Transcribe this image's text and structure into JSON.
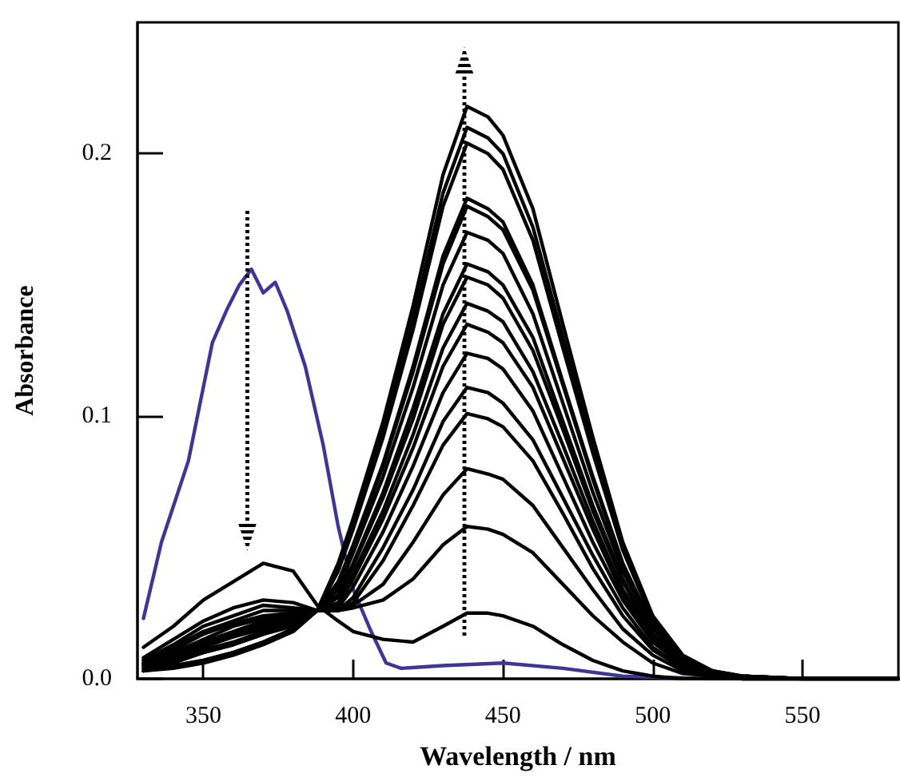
{
  "chart_data": {
    "type": "line",
    "xlabel": "Wavelength / nm",
    "ylabel": "Absorbance",
    "x": [
      330,
      340,
      350,
      360,
      370,
      380,
      388,
      395,
      400,
      410,
      420,
      430,
      438,
      445,
      450,
      460,
      470,
      480,
      490,
      500,
      510,
      520,
      530,
      550,
      582
    ],
    "xlim": [
      328,
      582
    ],
    "xticks": [
      350,
      400,
      450,
      500,
      550
    ],
    "ylim": [
      0,
      0.25
    ],
    "yticks": [
      {
        "value": 0,
        "label": "0.0"
      },
      0.1,
      0.2
    ],
    "grid": false,
    "marker": "none",
    "line_style": "solid",
    "series": [
      {
        "color": "#3f3594",
        "x": [
          330,
          336,
          345,
          353,
          358,
          362,
          366,
          370,
          374,
          378,
          384,
          390,
          395,
          400,
          406,
          411,
          416,
          430,
          450,
          470,
          490,
          520,
          582
        ],
        "values": [
          0.023,
          0.052,
          0.083,
          0.128,
          0.141,
          0.15,
          0.156,
          0.147,
          0.151,
          0.14,
          0.119,
          0.089,
          0.058,
          0.034,
          0.018,
          0.006,
          0.004,
          0.005,
          0.006,
          0.004,
          0.001,
          0,
          0
        ]
      },
      {
        "color": "#000000",
        "values": [
          0.012,
          0.02,
          0.03,
          0.037,
          0.044,
          0.041,
          0.028,
          0.022,
          0.018,
          0.015,
          0.014,
          0.02,
          0.025,
          0.025,
          0.024,
          0.02,
          0.013,
          0.007,
          0.003,
          0.001,
          0,
          0,
          0,
          0,
          0
        ]
      },
      {
        "color": "#000000",
        "values": [
          0.008,
          0.015,
          0.022,
          0.027,
          0.03,
          0.029,
          0.026,
          0.026,
          0.027,
          0.03,
          0.038,
          0.051,
          0.058,
          0.057,
          0.055,
          0.048,
          0.036,
          0.024,
          0.014,
          0.006,
          0.002,
          0.001,
          0,
          0,
          0
        ]
      },
      {
        "color": "#000000",
        "values": [
          0.007,
          0.013,
          0.02,
          0.024,
          0.028,
          0.027,
          0.026,
          0.026,
          0.028,
          0.036,
          0.052,
          0.07,
          0.08,
          0.078,
          0.076,
          0.066,
          0.05,
          0.034,
          0.019,
          0.009,
          0.003,
          0.001,
          0,
          0,
          0
        ]
      },
      {
        "color": "#000000",
        "values": [
          0.007,
          0.012,
          0.018,
          0.022,
          0.026,
          0.026,
          0.026,
          0.026,
          0.029,
          0.045,
          0.066,
          0.089,
          0.101,
          0.099,
          0.096,
          0.083,
          0.063,
          0.042,
          0.024,
          0.011,
          0.004,
          0.001,
          0,
          0,
          0
        ]
      },
      {
        "color": "#000000",
        "values": [
          0.006,
          0.011,
          0.017,
          0.021,
          0.024,
          0.025,
          0.026,
          0.026,
          0.031,
          0.05,
          0.072,
          0.098,
          0.111,
          0.109,
          0.105,
          0.091,
          0.069,
          0.047,
          0.027,
          0.012,
          0.004,
          0.001,
          0,
          0,
          0
        ]
      },
      {
        "color": "#000000",
        "values": [
          0.006,
          0.01,
          0.015,
          0.02,
          0.023,
          0.024,
          0.026,
          0.027,
          0.035,
          0.056,
          0.081,
          0.109,
          0.124,
          0.122,
          0.118,
          0.102,
          0.077,
          0.052,
          0.03,
          0.014,
          0.005,
          0.001,
          0,
          0,
          0
        ]
      },
      {
        "color": "#000000",
        "values": [
          0.006,
          0.01,
          0.014,
          0.018,
          0.022,
          0.024,
          0.026,
          0.028,
          0.038,
          0.061,
          0.088,
          0.119,
          0.135,
          0.132,
          0.128,
          0.111,
          0.084,
          0.057,
          0.032,
          0.015,
          0.005,
          0.002,
          0,
          0,
          0
        ]
      },
      {
        "color": "#000000",
        "values": [
          0.005,
          0.009,
          0.014,
          0.017,
          0.021,
          0.023,
          0.026,
          0.029,
          0.04,
          0.064,
          0.093,
          0.126,
          0.143,
          0.14,
          0.136,
          0.117,
          0.089,
          0.06,
          0.034,
          0.016,
          0.006,
          0.002,
          0,
          0,
          0
        ]
      },
      {
        "color": "#000000",
        "values": [
          0.005,
          0.009,
          0.013,
          0.016,
          0.02,
          0.023,
          0.026,
          0.031,
          0.043,
          0.069,
          0.099,
          0.135,
          0.153,
          0.15,
          0.145,
          0.125,
          0.095,
          0.064,
          0.037,
          0.017,
          0.006,
          0.002,
          0,
          0,
          0
        ]
      },
      {
        "color": "#000000",
        "values": [
          0.005,
          0.008,
          0.012,
          0.016,
          0.019,
          0.022,
          0.026,
          0.032,
          0.044,
          0.071,
          0.103,
          0.139,
          0.158,
          0.155,
          0.15,
          0.13,
          0.098,
          0.066,
          0.038,
          0.017,
          0.006,
          0.002,
          0,
          0,
          0
        ]
      },
      {
        "color": "#000000",
        "values": [
          0.005,
          0.007,
          0.011,
          0.014,
          0.018,
          0.021,
          0.026,
          0.034,
          0.048,
          0.077,
          0.111,
          0.15,
          0.17,
          0.167,
          0.162,
          0.139,
          0.105,
          0.071,
          0.041,
          0.019,
          0.007,
          0.002,
          0.001,
          0,
          0
        ]
      },
      {
        "color": "#000000",
        "values": [
          0.004,
          0.007,
          0.01,
          0.013,
          0.017,
          0.021,
          0.026,
          0.036,
          0.05,
          0.081,
          0.117,
          0.158,
          0.18,
          0.176,
          0.171,
          0.148,
          0.112,
          0.076,
          0.043,
          0.02,
          0.007,
          0.002,
          0.001,
          0,
          0
        ]
      },
      {
        "color": "#000000",
        "values": [
          0.004,
          0.006,
          0.01,
          0.013,
          0.017,
          0.02,
          0.026,
          0.037,
          0.051,
          0.082,
          0.119,
          0.161,
          0.183,
          0.179,
          0.174,
          0.15,
          0.113,
          0.077,
          0.044,
          0.02,
          0.007,
          0.002,
          0.001,
          0,
          0
        ]
      },
      {
        "color": "#000000",
        "values": [
          0.003,
          0.005,
          0.007,
          0.01,
          0.014,
          0.019,
          0.026,
          0.041,
          0.057,
          0.092,
          0.133,
          0.18,
          0.204,
          0.2,
          0.194,
          0.167,
          0.126,
          0.086,
          0.049,
          0.022,
          0.008,
          0.002,
          0.001,
          0,
          0
        ]
      },
      {
        "color": "#000000",
        "values": [
          0.003,
          0.005,
          0.007,
          0.01,
          0.014,
          0.019,
          0.026,
          0.042,
          0.059,
          0.095,
          0.137,
          0.185,
          0.21,
          0.206,
          0.2,
          0.172,
          0.13,
          0.088,
          0.05,
          0.023,
          0.008,
          0.003,
          0.001,
          0,
          0
        ]
      },
      {
        "color": "#000000",
        "values": [
          0.003,
          0.004,
          0.006,
          0.009,
          0.013,
          0.018,
          0.026,
          0.044,
          0.061,
          0.098,
          0.142,
          0.192,
          0.218,
          0.214,
          0.207,
          0.179,
          0.135,
          0.092,
          0.052,
          0.024,
          0.009,
          0.003,
          0.001,
          0,
          0
        ]
      }
    ]
  }
}
